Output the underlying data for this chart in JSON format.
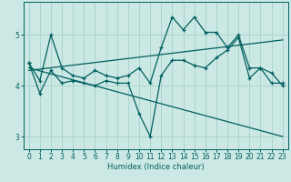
{
  "xlabel": "Humidex (Indice chaleur)",
  "bg_color": "#cce8e4",
  "line_color": "#005f5f",
  "grid_color": "#aad4ce",
  "x": [
    0,
    1,
    2,
    3,
    4,
    5,
    6,
    7,
    8,
    9,
    10,
    11,
    12,
    13,
    14,
    15,
    16,
    17,
    18,
    19,
    20,
    21,
    22,
    23
  ],
  "series1": [
    4.45,
    4.1,
    5.0,
    4.35,
    4.2,
    4.15,
    4.3,
    4.2,
    4.15,
    4.2,
    4.35,
    4.05,
    4.75,
    5.35,
    5.1,
    5.35,
    5.05,
    5.05,
    4.75,
    5.0,
    4.35,
    4.35,
    4.05,
    4.05
  ],
  "series2": [
    4.45,
    3.85,
    4.3,
    4.05,
    4.1,
    4.05,
    4.0,
    4.1,
    4.05,
    4.05,
    3.45,
    3.0,
    4.2,
    4.5,
    4.5,
    4.4,
    4.35,
    4.55,
    4.7,
    4.95,
    4.15,
    4.35,
    4.25,
    4.0
  ],
  "line1_trend": [
    [
      0,
      4.3
    ],
    [
      23,
      4.9
    ]
  ],
  "line2_trend": [
    [
      0,
      4.35
    ],
    [
      23,
      3.0
    ]
  ],
  "ylim": [
    2.75,
    5.65
  ],
  "yticks": [
    3,
    4,
    5
  ],
  "xlim": [
    -0.5,
    23.5
  ]
}
